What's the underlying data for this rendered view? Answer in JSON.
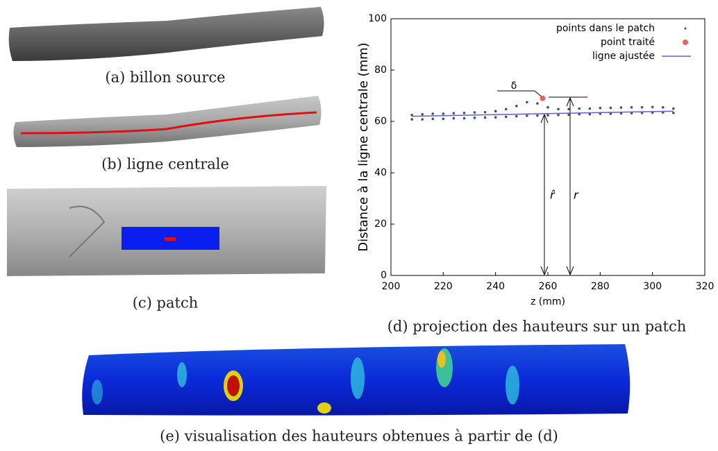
{
  "captions": {
    "a": "(a) billon source",
    "b": "(b) ligne centrale",
    "c": "(c) patch",
    "d": "(d) projection des hauteurs sur un patch",
    "e": "(e) visualisation des hauteurs obtenues à partir de (d)"
  },
  "chart_data": {
    "type": "scatter",
    "xlabel": "z (mm)",
    "ylabel": "Distance à la ligne centrale (mm)",
    "xlim": [
      200,
      320
    ],
    "ylim": [
      0,
      100
    ],
    "xticks": [
      200,
      220,
      240,
      260,
      280,
      300,
      320
    ],
    "yticks": [
      0,
      20,
      40,
      60,
      80,
      100
    ],
    "legend": "upper right",
    "annotations": [
      "δ",
      "r̂",
      "r"
    ],
    "series": [
      {
        "name": "points dans le patch",
        "color": "#2f5a6e",
        "kind": "points",
        "x": [
          208,
          212,
          216,
          220,
          224,
          228,
          232,
          236,
          240,
          244,
          248,
          252,
          256,
          260,
          264,
          268,
          272,
          276,
          280,
          284,
          288,
          292,
          296,
          300,
          304,
          308,
          208,
          212,
          216,
          220,
          224,
          228,
          232,
          236,
          240,
          244,
          248,
          252,
          256,
          260,
          264,
          268,
          272,
          276,
          280,
          284,
          288,
          292,
          296,
          300,
          304,
          308
        ],
        "values": [
          62.5,
          62.8,
          63,
          63,
          63.2,
          63.3,
          63.5,
          63.6,
          64,
          64.8,
          66,
          67.5,
          67,
          65.5,
          64.8,
          64.8,
          65,
          65,
          65.2,
          65.3,
          65.4,
          65.5,
          65.5,
          65.6,
          65.5,
          65,
          60.8,
          60.8,
          61,
          61,
          61.2,
          61.2,
          61.4,
          61.5,
          61.6,
          61.8,
          62,
          62.2,
          62.3,
          62.4,
          62.5,
          62.6,
          62.8,
          62.8,
          63,
          63,
          63.1,
          63.2,
          63.3,
          63.4,
          63.5,
          63.3
        ]
      },
      {
        "name": "point traité",
        "color": "#f0605a",
        "kind": "big",
        "x": [
          258
        ],
        "values": [
          69
        ]
      },
      {
        "name": "ligne ajustée",
        "color": "#6a5acd",
        "kind": "line",
        "x": [
          208,
          308
        ],
        "values": [
          62,
          64
        ]
      }
    ]
  }
}
